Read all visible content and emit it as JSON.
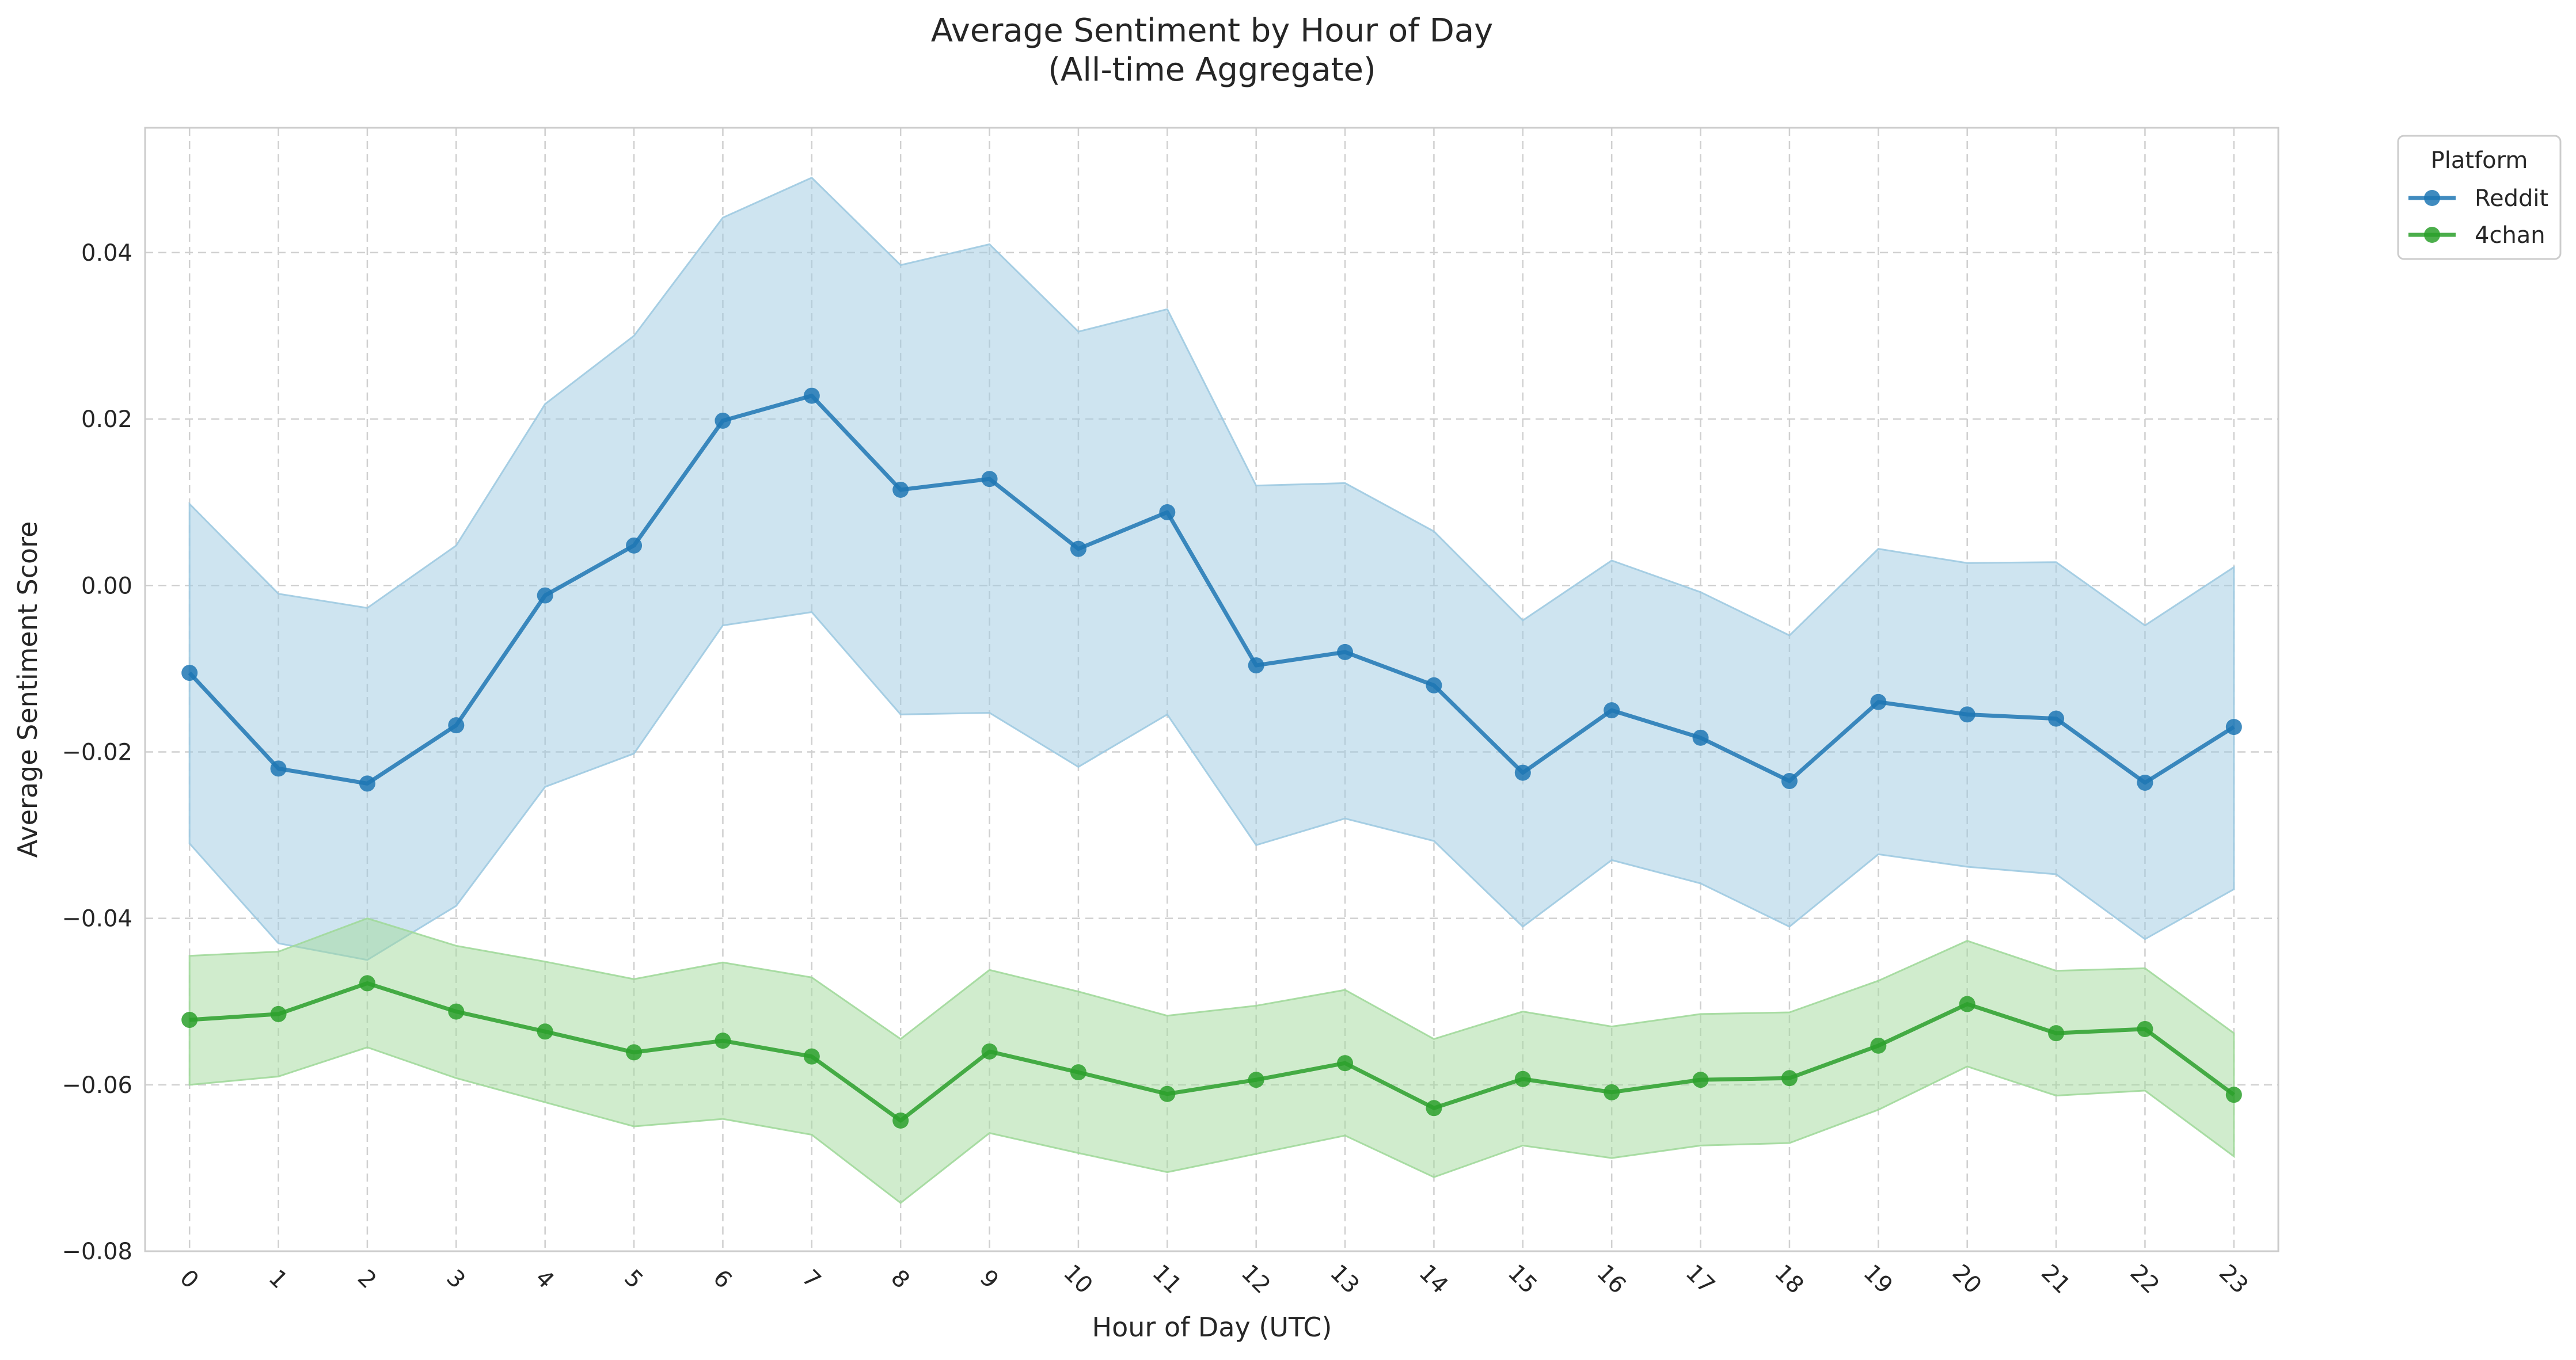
{
  "chart_data": {
    "type": "line",
    "title": "Average Sentiment by Hour of Day",
    "subtitle": "(All-time Aggregate)",
    "xlabel": "Hour of Day (UTC)",
    "ylabel": "Average Sentiment Score",
    "x": [
      0,
      1,
      2,
      3,
      4,
      5,
      6,
      7,
      8,
      9,
      10,
      11,
      12,
      13,
      14,
      15,
      16,
      17,
      18,
      19,
      20,
      21,
      22,
      23
    ],
    "xlim": [
      -0.5,
      23.5
    ],
    "ylim": [
      -0.08,
      0.055
    ],
    "yticks": [
      -0.08,
      -0.06,
      -0.04,
      -0.02,
      0.0,
      0.02,
      0.04
    ],
    "ytick_labels": [
      "−0.08",
      "−0.06",
      "−0.04",
      "−0.02",
      "0.00",
      "0.02",
      "0.04"
    ],
    "xtick_rotation_deg": 45,
    "grid": true,
    "grid_style": "dashed",
    "legend": {
      "title": "Platform",
      "placement": "outside-top-right"
    },
    "series": [
      {
        "name": "Reddit",
        "color": "#1f77b4",
        "band_color": "#9ecae1",
        "marker": "circle",
        "values": [
          -0.0105,
          -0.022,
          -0.0238,
          -0.0168,
          -0.0012,
          0.0048,
          0.0198,
          0.0228,
          0.0115,
          0.0128,
          0.0044,
          0.0088,
          -0.0096,
          -0.008,
          -0.012,
          -0.0225,
          -0.015,
          -0.0183,
          -0.0235,
          -0.014,
          -0.0155,
          -0.016,
          -0.0237,
          -0.017
        ],
        "upper": [
          0.0098,
          -0.001,
          -0.0027,
          0.0048,
          0.0218,
          0.03,
          0.0442,
          0.049,
          0.0385,
          0.041,
          0.0305,
          0.0332,
          0.012,
          0.0123,
          0.0065,
          -0.0042,
          0.003,
          -0.0008,
          -0.006,
          0.0044,
          0.0027,
          0.0028,
          -0.0048,
          0.0022
        ],
        "lower": [
          -0.031,
          -0.043,
          -0.045,
          -0.0385,
          -0.0242,
          -0.0202,
          -0.0048,
          -0.0032,
          -0.0155,
          -0.0153,
          -0.0218,
          -0.0155,
          -0.0312,
          -0.028,
          -0.0307,
          -0.041,
          -0.033,
          -0.0358,
          -0.041,
          -0.0323,
          -0.0338,
          -0.0347,
          -0.0425,
          -0.0365
        ]
      },
      {
        "name": "4chan",
        "color": "#2ca02c",
        "band_color": "#a1d99b",
        "marker": "circle",
        "values": [
          -0.0522,
          -0.0515,
          -0.0478,
          -0.0512,
          -0.0536,
          -0.0561,
          -0.0547,
          -0.0566,
          -0.0643,
          -0.056,
          -0.0585,
          -0.0611,
          -0.0594,
          -0.0574,
          -0.0628,
          -0.0593,
          -0.0609,
          -0.0594,
          -0.0592,
          -0.0553,
          -0.0503,
          -0.0538,
          -0.0533,
          -0.0612
        ],
        "upper": [
          -0.0445,
          -0.044,
          -0.04,
          -0.0433,
          -0.0452,
          -0.0473,
          -0.0453,
          -0.0471,
          -0.0545,
          -0.0462,
          -0.0488,
          -0.0517,
          -0.0505,
          -0.0486,
          -0.0545,
          -0.0512,
          -0.053,
          -0.0515,
          -0.0513,
          -0.0475,
          -0.0427,
          -0.0463,
          -0.046,
          -0.0538
        ],
        "lower": [
          -0.06,
          -0.059,
          -0.0555,
          -0.0592,
          -0.0621,
          -0.065,
          -0.0641,
          -0.066,
          -0.0742,
          -0.0658,
          -0.0682,
          -0.0705,
          -0.0683,
          -0.0661,
          -0.0711,
          -0.0673,
          -0.0688,
          -0.0673,
          -0.067,
          -0.063,
          -0.0578,
          -0.0613,
          -0.0607,
          -0.0686
        ]
      }
    ]
  }
}
